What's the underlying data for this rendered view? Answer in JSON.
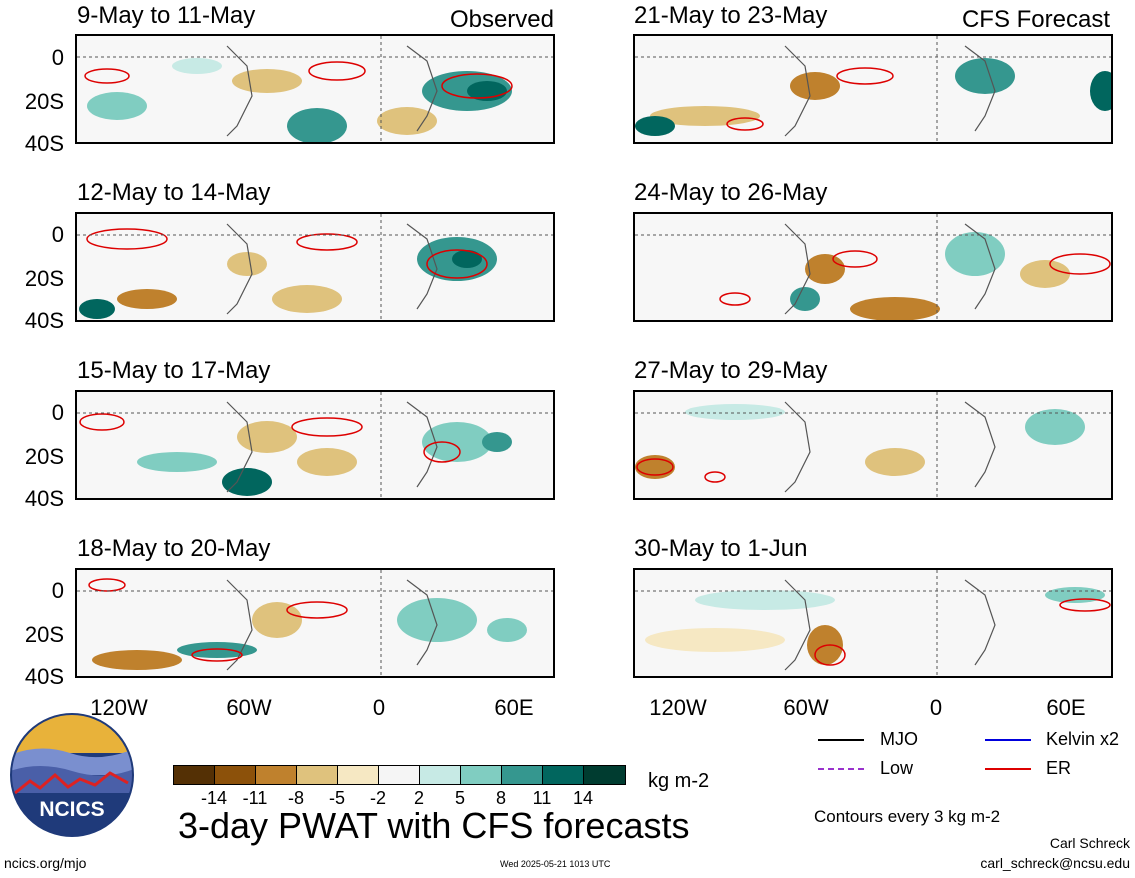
{
  "left_header": "Observed",
  "right_header": "CFS Forecast",
  "panels_left": [
    "9-May to 11-May",
    "12-May to 14-May",
    "15-May to 17-May",
    "18-May to 20-May"
  ],
  "panels_right": [
    "21-May to 23-May",
    "24-May to 26-May",
    "27-May to 29-May",
    "30-May to 1-Jun"
  ],
  "lat_labels": [
    "0",
    "20S",
    "40S"
  ],
  "lon_labels": [
    "120W",
    "60W",
    "0",
    "60E"
  ],
  "legend": {
    "mjo": "MJO",
    "kelvin": "Kelvin x2",
    "low": "Low",
    "er": "ER",
    "colors": {
      "mjo": "#000000",
      "kelvin": "#0000dd",
      "low": "#9933cc",
      "er": "#dd0000"
    }
  },
  "colorbar": {
    "labels": [
      "-14",
      "-11",
      "-8",
      "-5",
      "-2",
      "2",
      "5",
      "8",
      "11",
      "14"
    ],
    "colors": [
      "#543005",
      "#8c510a",
      "#bf812d",
      "#dfc27d",
      "#f6e8c3",
      "#f5f5f5",
      "#c7eae5",
      "#80cdc1",
      "#35978f",
      "#01665e",
      "#003c30"
    ],
    "unit": "kg m-2"
  },
  "main_title": "3-day PWAT with CFS forecasts",
  "contour_note": "Contours every 3 kg m-2",
  "author_name": "Carl Schreck",
  "author_email": "carl_schreck@ncsu.edu",
  "site": "ncics.org/mjo",
  "timestamp": "Wed 2025-05-21 1013 UTC",
  "logo_text": "NCICS"
}
